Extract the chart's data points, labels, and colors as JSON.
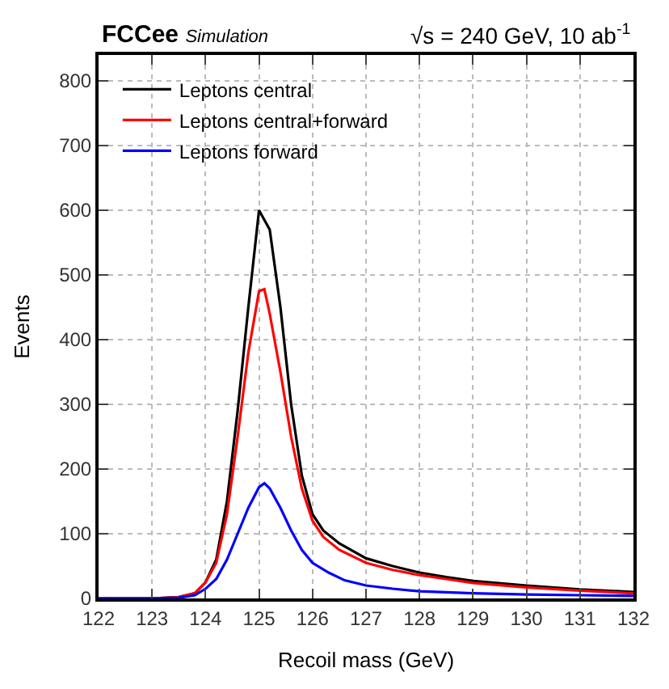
{
  "chart_data": {
    "type": "line",
    "title": "FCCee",
    "subtitle": "Simulation",
    "annotations": [
      "√s = 240 GeV, 10 ab$^{-1}$"
    ],
    "xlabel": "Recoil mass (GeV)",
    "ylabel": "Events",
    "xlim": [
      122,
      132
    ],
    "xticks": [
      122,
      123,
      124,
      125,
      126,
      127,
      128,
      129,
      130,
      131,
      132
    ],
    "ylim": [
      0,
      840
    ],
    "yticks": [
      0,
      100,
      200,
      300,
      400,
      500,
      600,
      700,
      800
    ],
    "grid": true,
    "legend": "top left",
    "marker": "none",
    "line_style": "solid",
    "series": [
      {
        "name": "Leptons central",
        "color": "#000000",
        "x": [
          122,
          123,
          123.5,
          123.8,
          124,
          124.2,
          124.4,
          124.6,
          124.8,
          125,
          125.2,
          125.4,
          125.6,
          125.8,
          126,
          126.2,
          126.5,
          127,
          127.5,
          128,
          128.5,
          129,
          130,
          131,
          132
        ],
        "values": [
          0,
          0,
          2,
          8,
          25,
          60,
          150,
          290,
          450,
          600,
          570,
          450,
          300,
          190,
          130,
          105,
          85,
          62,
          50,
          40,
          33,
          27,
          20,
          14,
          10
        ]
      },
      {
        "name": "Leptons central+forward",
        "color": "#ff0000",
        "x": [
          122,
          123,
          123.5,
          123.8,
          124,
          124.2,
          124.4,
          124.6,
          124.8,
          125,
          125.1,
          125.2,
          125.4,
          125.6,
          125.8,
          126,
          126.2,
          126.5,
          127,
          127.5,
          128,
          128.5,
          129,
          130,
          131,
          132
        ],
        "values": [
          0,
          0,
          2,
          8,
          25,
          55,
          130,
          250,
          380,
          475,
          478,
          440,
          350,
          250,
          170,
          120,
          95,
          75,
          55,
          44,
          36,
          30,
          24,
          17,
          12,
          8
        ]
      },
      {
        "name": "Leptons forward",
        "color": "#0000ff",
        "x": [
          122,
          123,
          123.5,
          123.8,
          124,
          124.2,
          124.4,
          124.6,
          124.8,
          125,
          125.1,
          125.2,
          125.4,
          125.6,
          125.8,
          126,
          126.3,
          126.6,
          127,
          127.5,
          128,
          129,
          130,
          131,
          132
        ],
        "values": [
          0,
          0,
          1,
          5,
          15,
          30,
          60,
          100,
          140,
          172,
          178,
          170,
          140,
          105,
          75,
          55,
          40,
          28,
          20,
          15,
          11,
          8,
          6,
          5,
          4
        ]
      }
    ]
  }
}
